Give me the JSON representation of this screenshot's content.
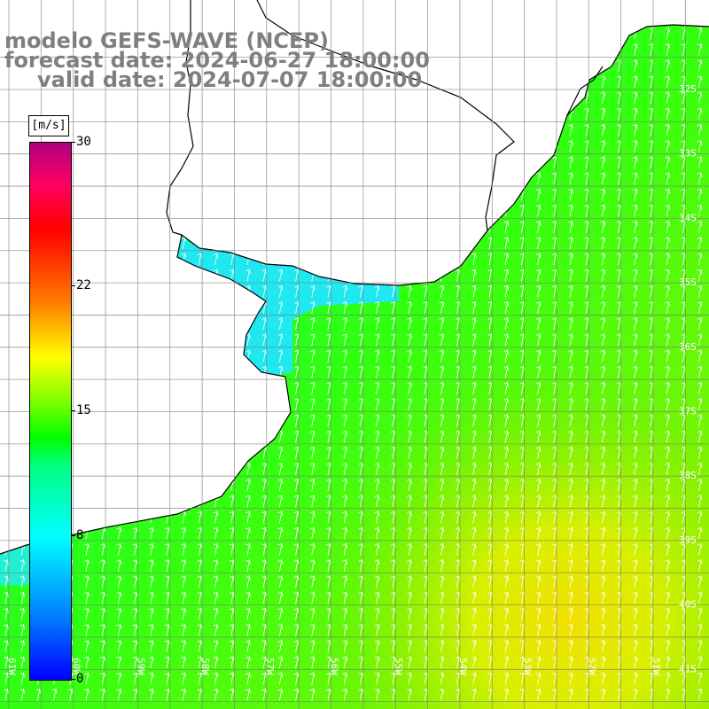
{
  "title": {
    "line1": "modelo GEFS-WAVE (NCEP)",
    "line2": "forecast date: 2024-06-27 18:00:00",
    "line3": "valid date: 2024-07-07 18:00:00"
  },
  "colorbar": {
    "units": "[m/s]",
    "min": 0,
    "max": 30,
    "labels": [
      "30",
      "22",
      "15",
      "8",
      "0"
    ],
    "label_values": [
      30,
      22,
      15,
      8,
      0
    ]
  },
  "map": {
    "variable": "wind speed",
    "latitude_labels": [
      "32S",
      "33S",
      "34S",
      "35S",
      "36S",
      "37S",
      "38S",
      "39S",
      "40S",
      "41S"
    ],
    "longitude_labels": [
      "61W",
      "60W",
      "59W",
      "58W",
      "57W",
      "56W",
      "55W",
      "54W",
      "53W",
      "52W",
      "51W"
    ],
    "land_color": "#ffffff",
    "grid_color": "#808080",
    "arrow_color": "#ffffff",
    "wind_direction": "toward north-northeast"
  }
}
